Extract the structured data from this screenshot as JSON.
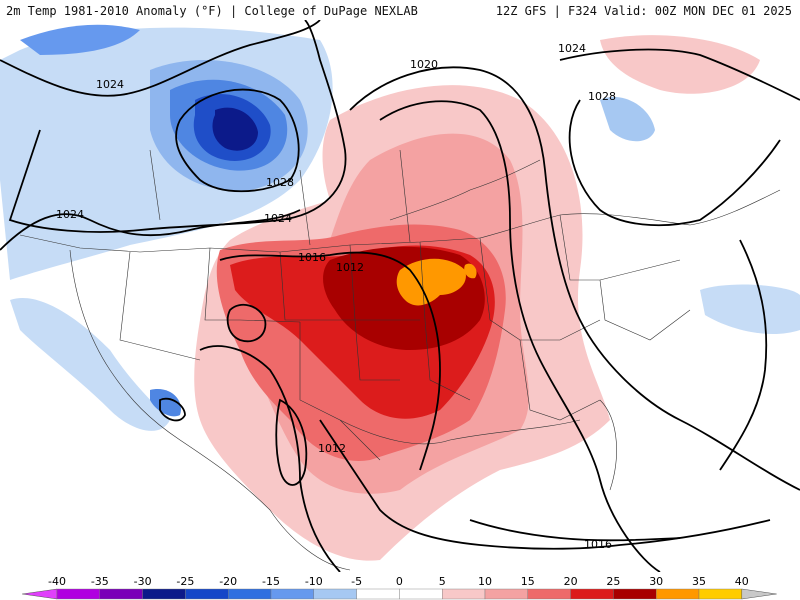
{
  "header": {
    "left": "2m Temp 1981-2010 Anomaly (°F) | College of DuPage NEXLAB",
    "right": "12Z GFS | F324 Valid: 00Z MON DEC 01 2025"
  },
  "colorbar": {
    "ticks": [
      "-40",
      "-35",
      "-30",
      "-25",
      "-20",
      "-15",
      "-10",
      "-5",
      "0",
      "5",
      "10",
      "15",
      "20",
      "25",
      "30",
      "35",
      "40"
    ],
    "colors": [
      "#e040fb",
      "#b000e0",
      "#7a00b8",
      "#0c1a8a",
      "#1446c8",
      "#2f6fe0",
      "#6699ee",
      "#a6c8f2",
      "#ffffff",
      "#ffffff",
      "#f8c8c8",
      "#f4a2a2",
      "#ee6a6a",
      "#dc1c1c",
      "#a80000",
      "#ff9800",
      "#ffcc00",
      "#c8c8c8"
    ]
  },
  "isobars": [
    {
      "label": "1024"
    },
    {
      "label": "1028"
    },
    {
      "label": "1024"
    },
    {
      "label": "1024"
    },
    {
      "label": "1020"
    },
    {
      "label": "1024"
    },
    {
      "label": "1028"
    },
    {
      "label": "1016"
    },
    {
      "label": "1012"
    },
    {
      "label": "1012"
    },
    {
      "label": "1016"
    }
  ]
}
